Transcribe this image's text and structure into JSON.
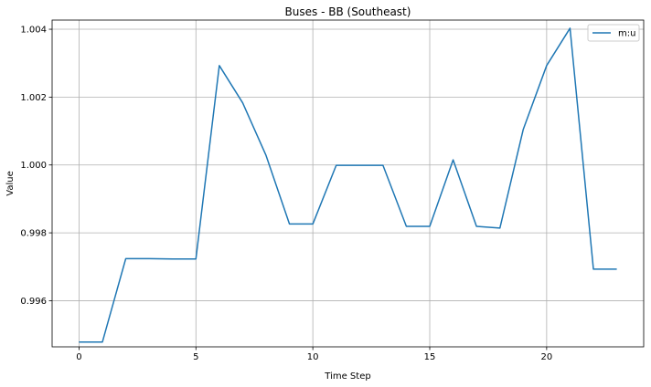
{
  "chart_data": {
    "type": "line",
    "title": "Buses - BB (Southeast)",
    "xlabel": "Time Step",
    "ylabel": "Value",
    "xlim": [
      -1.15,
      24.15
    ],
    "ylim": [
      0.99464,
      1.00427
    ],
    "xticks": [
      0,
      5,
      10,
      15,
      20
    ],
    "xtick_labels": [
      "0",
      "5",
      "10",
      "15",
      "20"
    ],
    "yticks": [
      0.996,
      0.998,
      1.0,
      1.002,
      1.004
    ],
    "ytick_labels": [
      "0.996",
      "0.998",
      "1.000",
      "1.002",
      "1.004"
    ],
    "grid": true,
    "legend": "top-right",
    "series": [
      {
        "name": "m:u",
        "color": "#1f77b4",
        "x": [
          0,
          1,
          2,
          3,
          4,
          5,
          6,
          7,
          8,
          9,
          10,
          11,
          12,
          13,
          14,
          15,
          16,
          17,
          18,
          19,
          20,
          21,
          22,
          23
        ],
        "values": [
          0.99478,
          0.99478,
          0.99724,
          0.99724,
          0.99723,
          0.99723,
          1.00293,
          1.00183,
          1.00028,
          0.99826,
          0.99826,
          0.99999,
          0.99999,
          0.99999,
          0.99819,
          0.99819,
          1.00015,
          0.99819,
          0.99814,
          1.00105,
          1.00293,
          1.00403,
          0.99693,
          0.99693
        ]
      }
    ]
  }
}
